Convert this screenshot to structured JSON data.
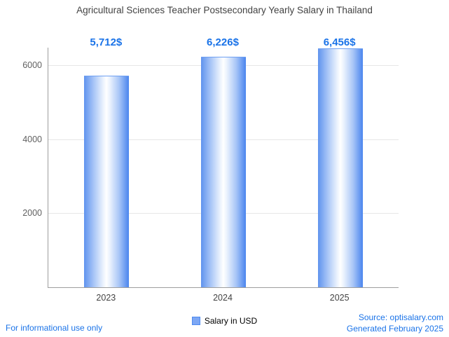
{
  "title": "Agricultural Sciences Teacher Postsecondary Yearly Salary in Thailand",
  "legend": {
    "label": "Salary in USD"
  },
  "footer": {
    "left": "For informational use only",
    "source": "Source: optisalary.com",
    "generated": "Generated February 2025"
  },
  "colors": {
    "accent": "#1a73e8",
    "bar_edge": "#4a85ee",
    "bar_fill_center": "#ffffff",
    "axis": "#9e9e9e",
    "grid": "#e6e6e6",
    "title_text": "#424242",
    "tick_text": "#616161"
  },
  "chart_data": {
    "type": "bar",
    "title": "Agricultural Sciences Teacher Postsecondary Yearly Salary in Thailand",
    "categories": [
      "2023",
      "2024",
      "2025"
    ],
    "values": [
      5712,
      6226,
      6456
    ],
    "bar_labels": [
      "5,712$",
      "6,226$",
      "6,456$"
    ],
    "xlabel": "",
    "ylabel": "",
    "yticks": [
      2000,
      4000,
      6000
    ],
    "ylim": [
      0,
      6500
    ],
    "grid": true,
    "legend": [
      "Salary in USD"
    ],
    "legend_position": "bottom"
  }
}
